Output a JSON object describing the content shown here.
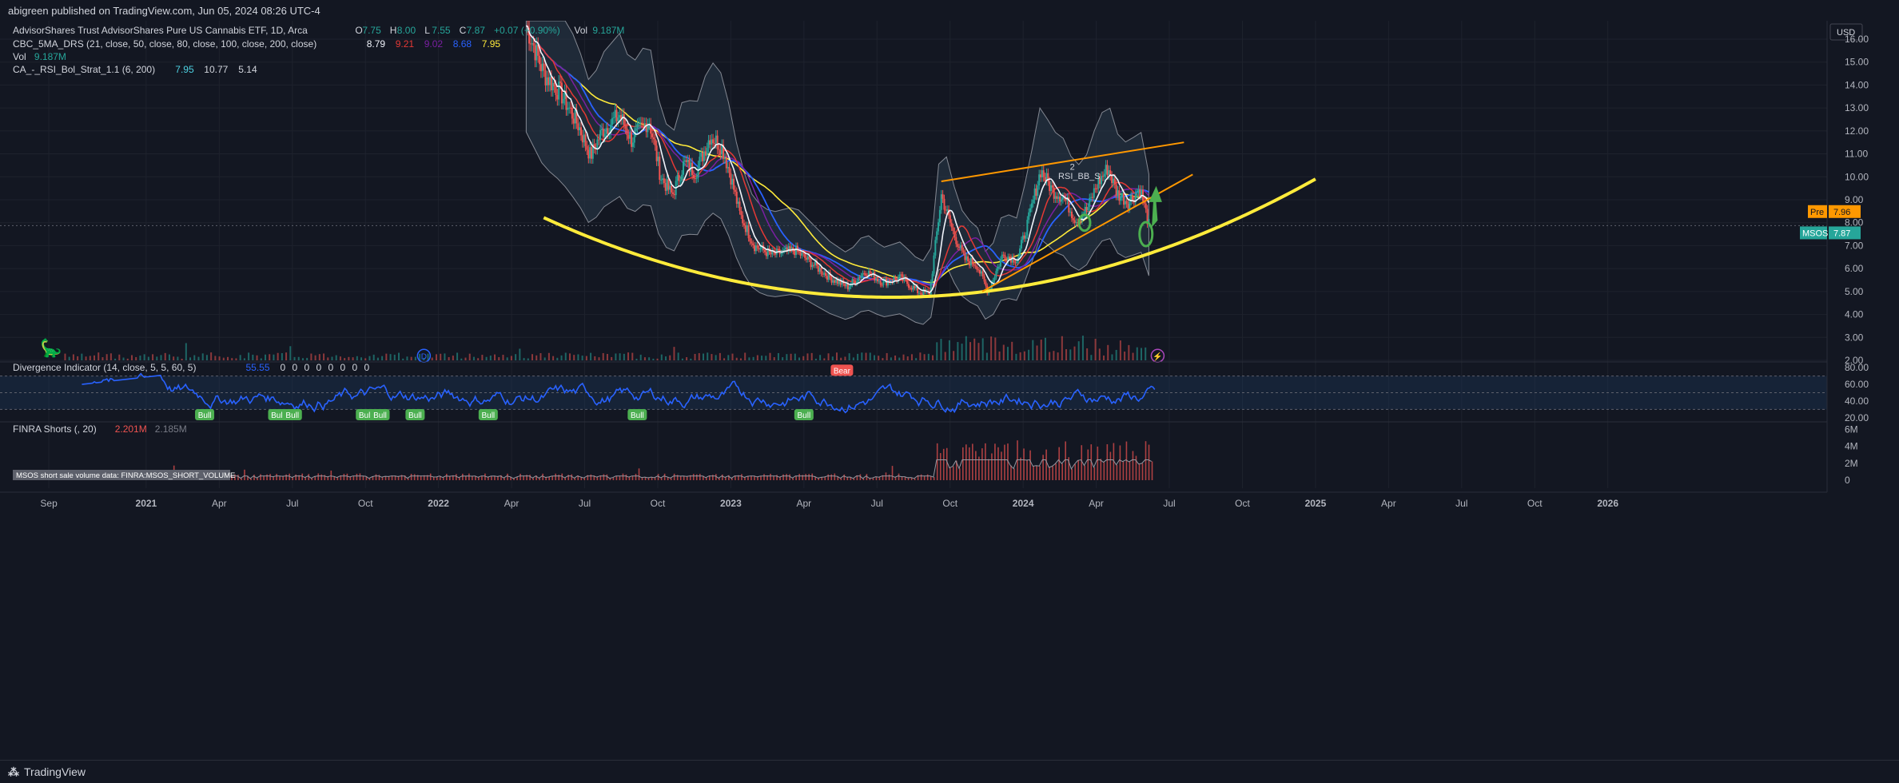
{
  "header": {
    "published": "abigreen published on TradingView.com, Jun 05, 2024 08:26 UTC-4"
  },
  "brand": {
    "name": "TradingView",
    "logo": "tv-logo-icon"
  },
  "legend": {
    "title": "AdvisorShares Trust AdvisorShares Pure US Cannabis ETF, 1D, Arca",
    "ohlc": [
      {
        "k": "O",
        "v": "7.75"
      },
      {
        "k": "H",
        "v": "8.00"
      },
      {
        "k": "L",
        "v": "7.55"
      },
      {
        "k": "C",
        "v": "7.87"
      },
      {
        "k": "",
        "v": "+0.07 (+0.90%)"
      },
      {
        "k": "Vol",
        "v": "9.187M"
      }
    ],
    "indicators": [
      {
        "name": "CBC_5MA_DRS (21, close, 50, close, 80, close, 100, close, 200, close)",
        "values": [
          {
            "v": "8.79",
            "c": "#f0f3fa"
          },
          {
            "v": "9.21",
            "c": "#e53935"
          },
          {
            "v": "9.02",
            "c": "#7b1fa2"
          },
          {
            "v": "8.68",
            "c": "#2962ff"
          },
          {
            "v": "7.95",
            "c": "#ffeb3b"
          }
        ]
      },
      {
        "name": "Vol",
        "values": [
          {
            "v": "9.187M",
            "c": "#26a69a"
          }
        ]
      },
      {
        "name": "CA_-_RSI_Bol_Strat_1.1 (6, 200)",
        "values": [
          {
            "v": "7.95",
            "c": "#4dd0e1"
          },
          {
            "v": "10.77",
            "c": "#d1d4dc"
          },
          {
            "v": "5.14",
            "c": "#d1d4dc"
          }
        ]
      }
    ]
  },
  "colors": {
    "bg": "#131722",
    "grid": "#1e222d",
    "text": "#b2b5be",
    "up": "#26a69a",
    "down": "#ef5350",
    "parabola": "#ffeb3b",
    "trend": "#ff9800",
    "rsi": "#2962ff",
    "arrow": "#4caf50"
  },
  "chart_data": [
    {
      "type": "line",
      "name": "price",
      "ylim": [
        2.0,
        16.8
      ],
      "yticks": [
        "16.00",
        "15.00",
        "14.00",
        "13.00",
        "12.00",
        "11.00",
        "10.00",
        "9.00",
        "8.00",
        "7.00",
        "6.00",
        "5.00",
        "4.00",
        "3.00",
        "2.00"
      ],
      "currency": "USD",
      "xticks": [
        "Sep",
        "2021",
        "Apr",
        "Jul",
        "Oct",
        "2022",
        "Apr",
        "Jul",
        "Oct",
        "2023",
        "Apr",
        "Jul",
        "Oct",
        "2024",
        "Apr",
        "Jul",
        "Oct",
        "2025",
        "Apr",
        "Jul",
        "Oct",
        "2026"
      ],
      "series": [
        {
          "values": [
            [
              2022.3,
              16.6
            ],
            [
              2022.36,
              14.5
            ],
            [
              2022.42,
              13.6
            ],
            [
              2022.48,
              12.2
            ],
            [
              2022.52,
              10.9
            ],
            [
              2022.56,
              12.0
            ],
            [
              2022.62,
              12.7
            ],
            [
              2022.66,
              11.6
            ],
            [
              2022.72,
              12.5
            ],
            [
              2022.76,
              10.0
            ],
            [
              2022.8,
              9.2
            ],
            [
              2022.84,
              10.6
            ],
            [
              2022.88,
              10.2
            ],
            [
              2022.93,
              11.8
            ],
            [
              2022.97,
              11.3
            ],
            [
              2023.0,
              10.0
            ],
            [
              2023.03,
              8.4
            ],
            [
              2023.08,
              7.0
            ],
            [
              2023.14,
              6.6
            ],
            [
              2023.22,
              6.8
            ],
            [
              2023.28,
              6.2
            ],
            [
              2023.34,
              5.6
            ],
            [
              2023.4,
              5.2
            ],
            [
              2023.46,
              5.9
            ],
            [
              2023.52,
              5.4
            ],
            [
              2023.58,
              5.6
            ],
            [
              2023.64,
              5.0
            ],
            [
              2023.68,
              4.9
            ],
            [
              2023.72,
              9.2
            ],
            [
              2023.76,
              7.6
            ],
            [
              2023.8,
              6.4
            ],
            [
              2023.84,
              6.2
            ],
            [
              2023.88,
              5.0
            ],
            [
              2023.93,
              6.6
            ],
            [
              2023.98,
              6.4
            ],
            [
              2024.02,
              8.2
            ],
            [
              2024.06,
              10.3
            ],
            [
              2024.1,
              9.4
            ],
            [
              2024.14,
              9.1
            ],
            [
              2024.18,
              8.1
            ],
            [
              2024.22,
              8.6
            ],
            [
              2024.25,
              9.6
            ],
            [
              2024.29,
              10.4
            ],
            [
              2024.32,
              9.3
            ],
            [
              2024.36,
              8.9
            ],
            [
              2024.4,
              9.5
            ],
            [
              2024.43,
              7.9
            ]
          ]
        }
      ],
      "annotations": {
        "last_price": "7.87",
        "pre_label": "Pre",
        "pre_price": "7.96",
        "ticker": "MSOS",
        "signal_text": "RSI_BB_S",
        "signal_count": "2",
        "marker": "D"
      }
    },
    {
      "type": "line",
      "name": "Divergence Indicator (14, close, 5, 5, 60, 5)",
      "legend_values": [
        "55.55",
        "0",
        "0",
        "0",
        "0",
        "0",
        "0",
        "0",
        "0"
      ],
      "ylim": [
        17,
        84
      ],
      "yticks": [
        "80.00",
        "60.00",
        "40.00",
        "20.00"
      ],
      "bull_label": "Bull",
      "bear_label": "Bear",
      "bull_x": [
        2021.2,
        2021.45,
        2021.5,
        2021.75,
        2021.8,
        2021.92,
        2022.17,
        2022.68,
        2023.25
      ],
      "bear_x": [
        2023.38
      ]
    },
    {
      "type": "bar",
      "name": "FINRA Shorts (, 20)",
      "legend_values": [
        "2.201M",
        "2.185M"
      ],
      "ylim": [
        0,
        6.6
      ],
      "yticks": [
        "6M",
        "4M",
        "2M",
        "0"
      ],
      "source_label": "MSOS short sale volume data: FINRA:MSOS_SHORT_VOLUME"
    }
  ]
}
